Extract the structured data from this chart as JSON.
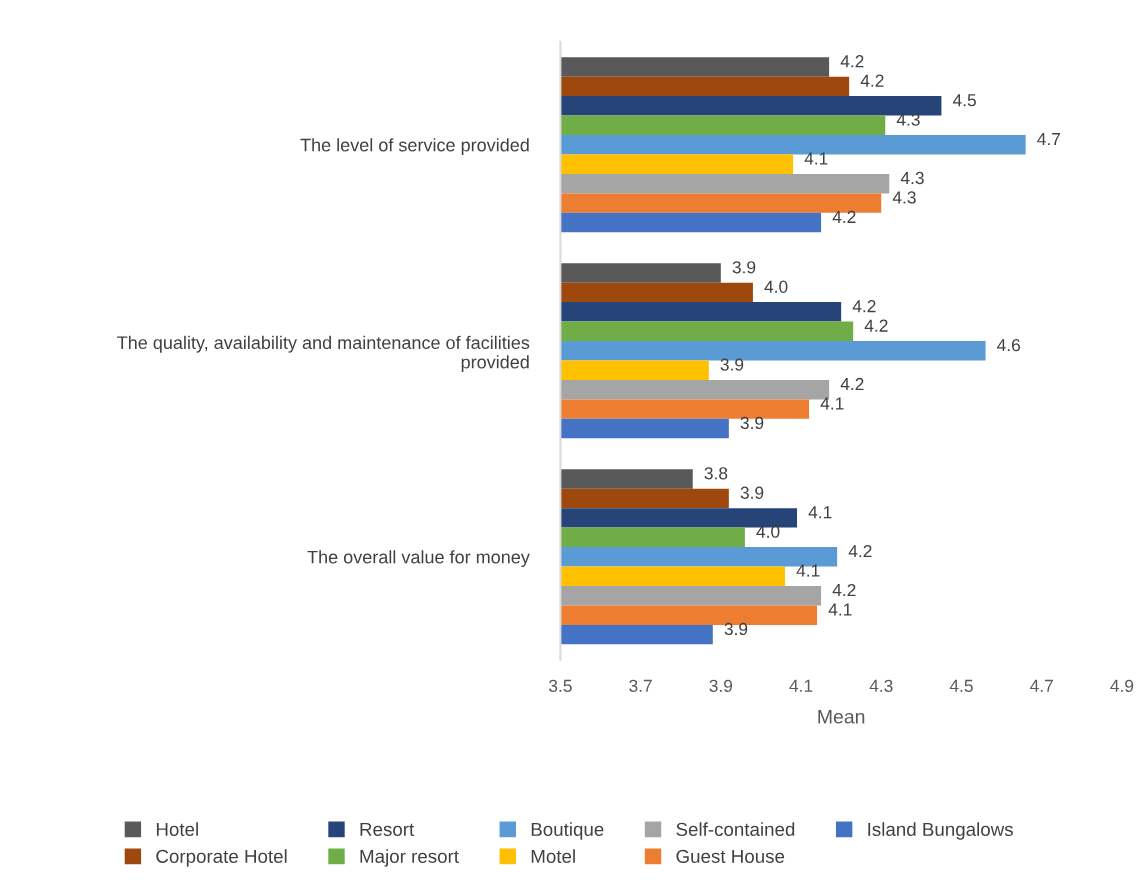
{
  "chart_data": {
    "type": "bar",
    "orientation": "horizontal",
    "xlabel": "Mean",
    "categories": [
      "The level of service provided",
      "The quality, availability and maintenance of facilities provided",
      "The overall value for money"
    ],
    "series": [
      {
        "name": "Hotel",
        "color": "#595959",
        "values": [
          4.17,
          3.9,
          3.83
        ],
        "value_labels": [
          "4.2",
          "3.9",
          "3.8"
        ]
      },
      {
        "name": "Corporate Hotel",
        "color": "#9e480e",
        "values": [
          4.22,
          3.98,
          3.92
        ],
        "value_labels": [
          "4.2",
          "4.0",
          "3.9"
        ]
      },
      {
        "name": "Resort",
        "color": "#264478",
        "values": [
          4.45,
          4.2,
          4.09
        ],
        "value_labels": [
          "4.5",
          "4.2",
          "4.1"
        ]
      },
      {
        "name": "Major resort",
        "color": "#70ad47",
        "values": [
          4.31,
          4.23,
          3.96
        ],
        "value_labels": [
          "4.3",
          "4.2",
          "4.0"
        ]
      },
      {
        "name": "Boutique",
        "color": "#5b9bd5",
        "values": [
          4.66,
          4.56,
          4.19
        ],
        "value_labels": [
          "4.7",
          "4.6",
          "4.2"
        ]
      },
      {
        "name": "Motel",
        "color": "#ffc000",
        "values": [
          4.08,
          3.87,
          4.06
        ],
        "value_labels": [
          "4.1",
          "3.9",
          "4.1"
        ]
      },
      {
        "name": "Self-contained",
        "color": "#a5a5a5",
        "values": [
          4.32,
          4.17,
          4.15
        ],
        "value_labels": [
          "4.3",
          "4.2",
          "4.2"
        ]
      },
      {
        "name": "Guest House",
        "color": "#ed7d31",
        "values": [
          4.3,
          4.12,
          4.14
        ],
        "value_labels": [
          "4.3",
          "4.1",
          "4.1"
        ]
      },
      {
        "name": "Island Bungalows",
        "color": "#4472c4",
        "values": [
          4.15,
          3.92,
          3.88
        ],
        "value_labels": [
          "4.2",
          "3.9",
          "3.9"
        ]
      }
    ],
    "xlim": [
      3.5,
      4.9
    ],
    "xticks": [
      3.5,
      3.7,
      3.9,
      4.1,
      4.3,
      4.5,
      4.7,
      4.9
    ],
    "grid": false,
    "legend": "bottom"
  }
}
